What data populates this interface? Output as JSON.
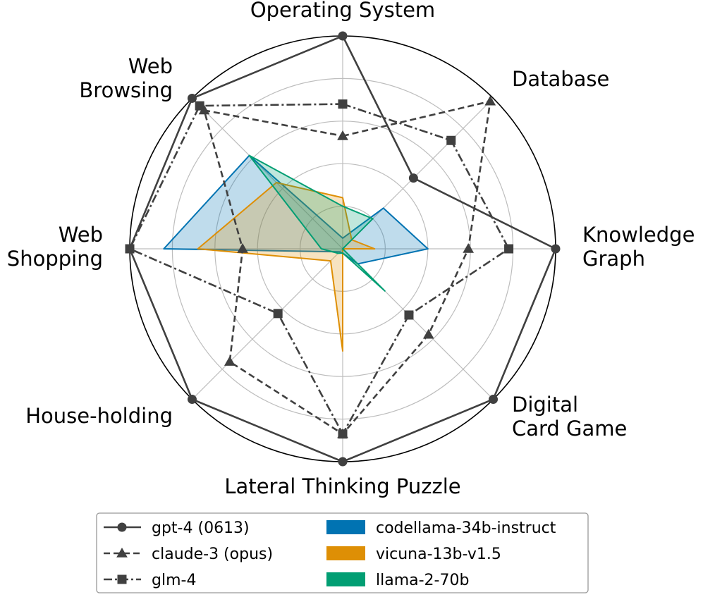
{
  "chart_data": {
    "type": "radar",
    "title": "",
    "categories": [
      "Operating System",
      "Database",
      "Knowledge\nGraph",
      "Digital\nCard Game",
      "Lateral Thinking Puzzle",
      "House-holding",
      "Web\nShopping",
      "Web\nBrowsing"
    ],
    "rlim": [
      0,
      1
    ],
    "grid": true,
    "legend_position": "bottom",
    "line_series": [
      {
        "name": "gpt-4 (0613)",
        "style": "solid",
        "marker": "circle",
        "color": "#404040",
        "values": [
          1.0,
          0.47,
          1.0,
          1.0,
          1.0,
          1.0,
          1.0,
          1.0
        ]
      },
      {
        "name": "claude-3 (opus)",
        "style": "dashed",
        "marker": "triangle",
        "color": "#404040",
        "values": [
          0.53,
          0.98,
          0.59,
          0.57,
          0.87,
          0.75,
          0.47,
          0.92
        ]
      },
      {
        "name": "glm-4",
        "style": "dashdot",
        "marker": "square",
        "color": "#404040",
        "values": [
          0.68,
          0.72,
          0.78,
          0.44,
          0.87,
          0.43,
          1.0,
          0.95
        ]
      }
    ],
    "area_series": [
      {
        "name": "codellama-34b-instruct",
        "color": "#0173b2",
        "values": [
          0.05,
          0.27,
          0.4,
          0.1,
          0.02,
          0.02,
          0.84,
          0.62
        ]
      },
      {
        "name": "vicuna-13b-v1.5",
        "color": "#de8f05",
        "values": [
          0.24,
          0.06,
          0.15,
          0.0,
          0.48,
          0.08,
          0.68,
          0.44
        ]
      },
      {
        "name": "llama-2-70b",
        "color": "#029e73",
        "values": [
          0.2,
          0.2,
          0.0,
          0.28,
          0.02,
          0.03,
          0.1,
          0.62
        ]
      }
    ]
  }
}
